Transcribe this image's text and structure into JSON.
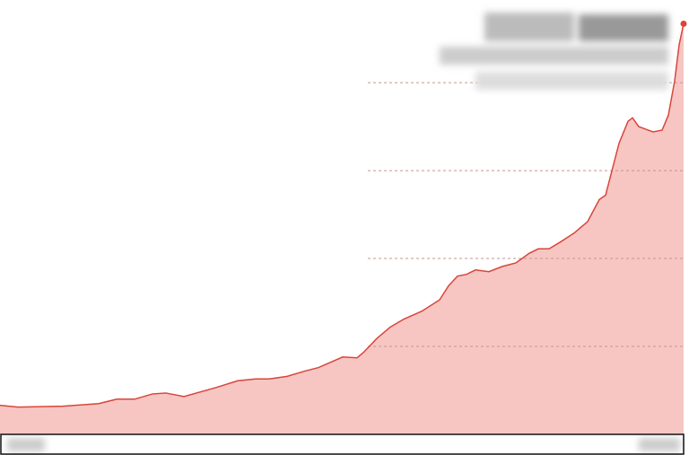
{
  "chart_data": {
    "type": "area",
    "x": [
      0,
      20,
      70,
      110,
      130,
      150,
      170,
      185,
      205,
      240,
      265,
      285,
      300,
      320,
      340,
      355,
      382,
      398,
      405,
      420,
      435,
      450,
      470,
      490,
      500,
      510,
      520,
      530,
      545,
      560,
      575,
      590,
      600,
      612,
      625,
      640,
      655,
      668,
      675,
      690,
      700,
      705,
      712,
      720,
      728,
      738,
      745,
      752,
      757,
      762
    ],
    "values": [
      0.33,
      0.31,
      0.32,
      0.35,
      0.4,
      0.4,
      0.46,
      0.47,
      0.43,
      0.53,
      0.61,
      0.63,
      0.63,
      0.66,
      0.72,
      0.76,
      0.88,
      0.87,
      0.93,
      1.09,
      1.22,
      1.31,
      1.4,
      1.53,
      1.69,
      1.8,
      1.82,
      1.87,
      1.85,
      1.91,
      1.95,
      2.06,
      2.11,
      2.11,
      2.19,
      2.29,
      2.42,
      2.67,
      2.72,
      3.31,
      3.56,
      3.6,
      3.5,
      3.47,
      3.44,
      3.46,
      3.63,
      4.02,
      4.43,
      4.67
    ],
    "xlim": [
      0,
      762
    ],
    "ylim": [
      0,
      4.94
    ],
    "yticks": [
      1,
      2,
      3,
      4
    ],
    "grid": true,
    "color": "#d9453a",
    "fill": "#f7c6c3"
  }
}
